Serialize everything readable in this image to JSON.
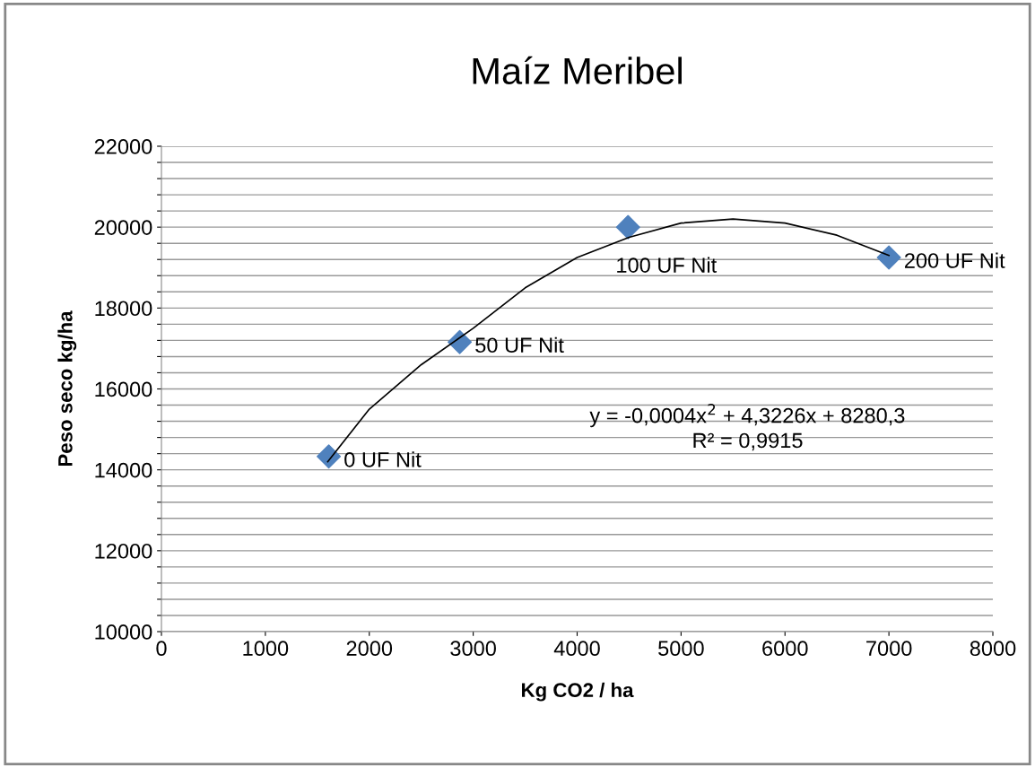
{
  "chart_data": {
    "type": "scatter",
    "title": "Maíz Meribel",
    "xlabel": "Kg CO2 / ha",
    "ylabel": "Peso seco kg/ha",
    "xlim": [
      0,
      8000
    ],
    "xticks": [
      0,
      1000,
      2000,
      3000,
      4000,
      5000,
      6000,
      7000,
      8000
    ],
    "ylim": [
      10000,
      22000
    ],
    "yticks": [
      10000,
      {
        "value": 10400,
        "label": null
      },
      {
        "value": 10800,
        "label": null
      },
      {
        "value": 11200,
        "label": null
      },
      {
        "value": 11600,
        "label": null
      },
      12000,
      {
        "value": 12400,
        "label": null
      },
      {
        "value": 12800,
        "label": null
      },
      {
        "value": 13200,
        "label": null
      },
      {
        "value": 13600,
        "label": null
      },
      14000,
      {
        "value": 14400,
        "label": null
      },
      {
        "value": 14800,
        "label": null
      },
      {
        "value": 15200,
        "label": null
      },
      {
        "value": 15600,
        "label": null
      },
      16000,
      {
        "value": 16400,
        "label": null
      },
      {
        "value": 16800,
        "label": null
      },
      {
        "value": 17200,
        "label": null
      },
      {
        "value": 17600,
        "label": null
      },
      18000,
      {
        "value": 18400,
        "label": null
      },
      {
        "value": 18800,
        "label": null
      },
      {
        "value": 19200,
        "label": null
      },
      {
        "value": 19600,
        "label": null
      },
      20000,
      {
        "value": 20400,
        "label": null
      },
      {
        "value": 20800,
        "label": null
      },
      {
        "value": 21200,
        "label": null
      },
      {
        "value": 21600,
        "label": null
      },
      22000
    ],
    "grid": "y",
    "legend": false,
    "series": [
      {
        "color": "#4f81bd",
        "marker": "diamond",
        "x": [
          1610,
          2870,
          4490,
          7000
        ],
        "values": [
          14330,
          17160,
          20000,
          19250
        ]
      },
      {
        "type": "line",
        "color": "#000000",
        "marker": "none",
        "line_style": "solid",
        "x": [
          1600,
          2000,
          2500,
          3000,
          3500,
          4000,
          4500,
          5000,
          5500,
          6000,
          6500,
          7000
        ],
        "values": [
          14200,
          15500,
          16600,
          17500,
          18500,
          19250,
          19750,
          20100,
          20200,
          20100,
          19800,
          19300
        ]
      }
    ],
    "annotations": [
      {
        "text": "0 UF Nit",
        "x": 1610,
        "y": 14330
      },
      {
        "text": "50 UF Nit",
        "x": 2870,
        "y": 17160
      },
      {
        "text": "100 UF Nit",
        "x": 4490,
        "y": 20000
      },
      {
        "text": "200 UF Nit",
        "x": 7000,
        "y": 19250
      },
      "y = -0,0004x$^{2}$ + 4,3226x + 8280,3",
      "R² = 0,9915"
    ]
  }
}
